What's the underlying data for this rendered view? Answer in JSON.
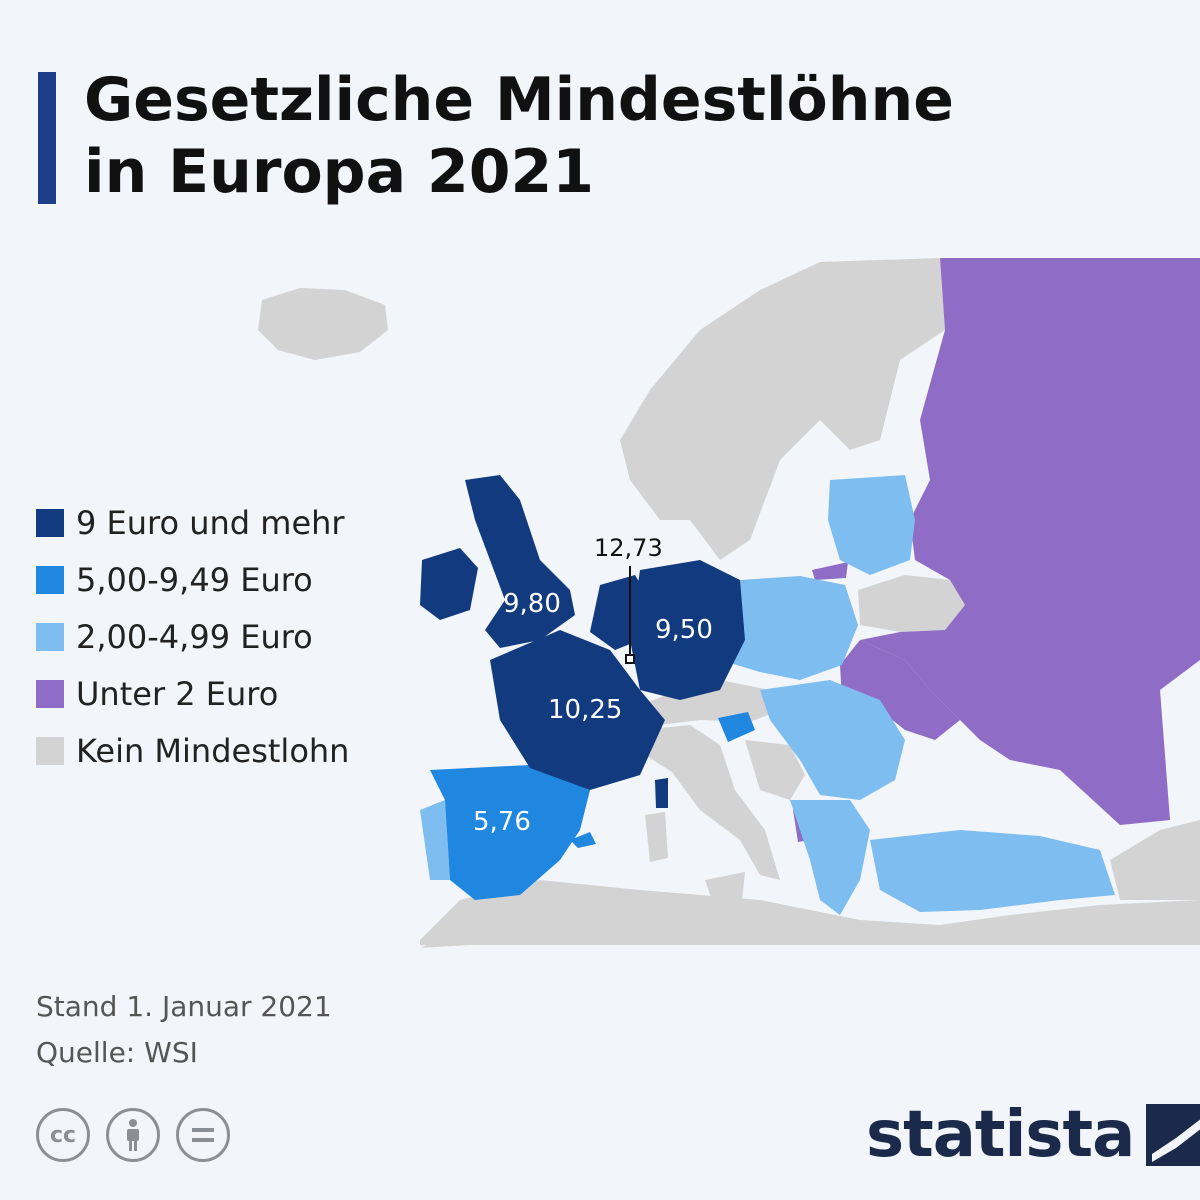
{
  "title": {
    "line1": "Gesetzliche Mindestlöhne",
    "line2": "in Europa 2021"
  },
  "legend": [
    {
      "label": "9 Euro und mehr",
      "color": "#123a7f"
    },
    {
      "label": "5,00-9,49 Euro",
      "color": "#1f87e0"
    },
    {
      "label": "2,00-4,99 Euro",
      "color": "#7dbdf0"
    },
    {
      "label": "Unter 2 Euro",
      "color": "#8f6cc5"
    },
    {
      "label": "Kein Mindestlohn",
      "color": "#d3d3d3"
    }
  ],
  "map_labels": {
    "uk": "9,80",
    "germany": "9,50",
    "france": "10,25",
    "spain": "5,76",
    "luxembourg": "12,73"
  },
  "footer": {
    "date": "Stand 1. Januar 2021",
    "source": "Quelle: WSI"
  },
  "brand": "statista",
  "icons": [
    "cc-icon",
    "attribution-icon",
    "no-derivatives-icon"
  ]
}
